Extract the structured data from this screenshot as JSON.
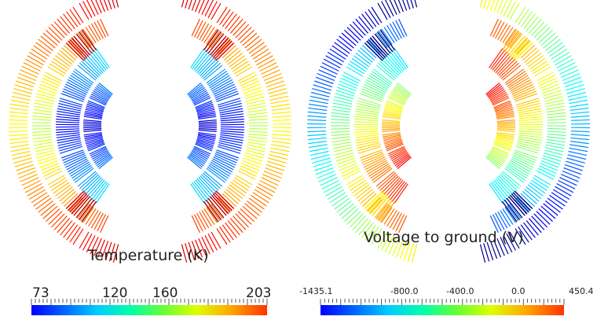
{
  "panels": [
    {
      "title": "Temperature (K)",
      "colorbar": {
        "ticks": [
          "73",
          "120",
          "160",
          "203"
        ],
        "tick_values": [
          73,
          120,
          160,
          203
        ],
        "min": 73,
        "max": 203,
        "colormap": "jet"
      }
    },
    {
      "title": "Voltage to ground (V)",
      "colorbar": {
        "ticks": [
          "-1435.1",
          "-800.0",
          "-400.0",
          "0.0",
          "450.4"
        ],
        "tick_values": [
          -1435.1,
          -800.0,
          -400.0,
          0.0,
          450.4
        ],
        "min": -1435.1,
        "max": 450.4,
        "colormap": "jet"
      }
    }
  ],
  "colors": {
    "jet_stops": [
      "#0000ff",
      "#00aaff",
      "#00ffcc",
      "#33ff33",
      "#ccff00",
      "#ffcc00",
      "#ff6600",
      "#cc2200"
    ]
  }
}
